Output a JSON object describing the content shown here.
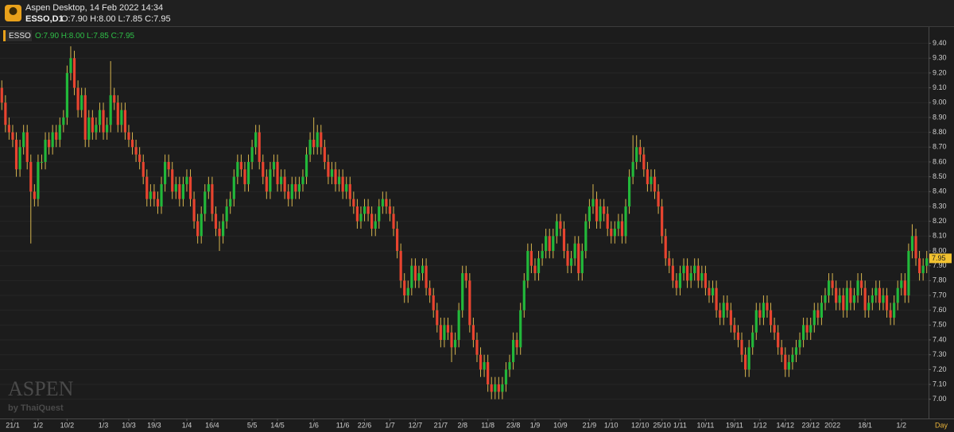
{
  "chart_data": {
    "type": "candlestick",
    "window_title": "Aspen Desktop, 14 Feb 2022 14:34",
    "symbol_period": "ESSO,D1",
    "symbol": "ESSO",
    "ohlc_label": "O:7.90 H:8.00 L:7.85 C:7.95",
    "brand": "ASPEN",
    "brand_by": "by ThaiQuest",
    "x_axis_unit": "Day",
    "last_price": 7.95,
    "up_color": "#22b83a",
    "down_color": "#e8442f",
    "wick_color": "#d6b54f",
    "grid": true,
    "ylim": [
      6.87,
      9.51
    ],
    "yticks": [
      {
        "value": 7,
        "label": "7.00"
      },
      {
        "value": 7.1,
        "label": "7.10"
      },
      {
        "value": 7.2,
        "label": "7.20"
      },
      {
        "value": 7.3,
        "label": "7.30"
      },
      {
        "value": 7.4,
        "label": "7.40"
      },
      {
        "value": 7.5,
        "label": "7.50"
      },
      {
        "value": 7.6,
        "label": "7.60"
      },
      {
        "value": 7.7,
        "label": "7.70"
      },
      {
        "value": 7.8,
        "label": "7.80"
      },
      {
        "value": 7.9,
        "label": "7.90"
      },
      {
        "value": 8,
        "label": "8.00"
      },
      {
        "value": 8.1,
        "label": "8.10"
      },
      {
        "value": 8.2,
        "label": "8.20"
      },
      {
        "value": 8.3,
        "label": "8.30"
      },
      {
        "value": 8.4,
        "label": "8.40"
      },
      {
        "value": 8.5,
        "label": "8.50"
      },
      {
        "value": 8.6,
        "label": "8.60"
      },
      {
        "value": 8.7,
        "label": "8.70"
      },
      {
        "value": 8.8,
        "label": "8.80"
      },
      {
        "value": 8.9,
        "label": "8.90"
      },
      {
        "value": 9,
        "label": "9.00"
      },
      {
        "value": 9.1,
        "label": "9.10"
      },
      {
        "value": 9.2,
        "label": "9.20"
      },
      {
        "value": 9.3,
        "label": "9.30"
      },
      {
        "value": 9.4,
        "label": "9.40"
      }
    ],
    "categories": [
      null,
      null,
      null,
      "21/1",
      null,
      null,
      null,
      null,
      null,
      null,
      "1/2",
      null,
      null,
      null,
      null,
      null,
      null,
      null,
      "10/2",
      null,
      null,
      null,
      null,
      null,
      null,
      null,
      null,
      null,
      "1/3",
      null,
      null,
      null,
      null,
      null,
      null,
      "10/3",
      null,
      null,
      null,
      null,
      null,
      null,
      "19/3",
      null,
      null,
      null,
      null,
      null,
      null,
      null,
      null,
      "1/4",
      null,
      null,
      null,
      null,
      null,
      null,
      "16/4",
      null,
      null,
      null,
      null,
      null,
      null,
      null,
      null,
      null,
      null,
      "5/5",
      null,
      null,
      null,
      null,
      null,
      null,
      "14/5",
      null,
      null,
      null,
      null,
      null,
      null,
      null,
      null,
      null,
      "1/6",
      null,
      null,
      null,
      null,
      null,
      null,
      null,
      "11/6",
      null,
      null,
      null,
      null,
      null,
      "22/6",
      null,
      null,
      null,
      null,
      null,
      null,
      "1/7",
      null,
      null,
      null,
      null,
      null,
      null,
      "12/7",
      null,
      null,
      null,
      null,
      null,
      null,
      "21/7",
      null,
      null,
      null,
      null,
      null,
      "2/8",
      null,
      null,
      null,
      null,
      null,
      null,
      "11/8",
      null,
      null,
      null,
      null,
      null,
      null,
      "23/8",
      null,
      null,
      null,
      null,
      null,
      "1/9",
      null,
      null,
      null,
      null,
      null,
      null,
      "10/9",
      null,
      null,
      null,
      null,
      null,
      null,
      null,
      "21/9",
      null,
      null,
      null,
      null,
      null,
      "1/10",
      null,
      null,
      null,
      null,
      null,
      null,
      null,
      "12/10",
      null,
      null,
      null,
      null,
      null,
      "25/10",
      null,
      null,
      null,
      null,
      "1/11",
      null,
      null,
      null,
      null,
      null,
      null,
      "10/11",
      null,
      null,
      null,
      null,
      null,
      null,
      null,
      "19/11",
      null,
      null,
      null,
      null,
      null,
      null,
      "1/12",
      null,
      null,
      null,
      null,
      null,
      null,
      "14/12",
      null,
      null,
      null,
      null,
      null,
      null,
      "23/12",
      null,
      null,
      null,
      null,
      null,
      "2022",
      null,
      null,
      null,
      null,
      null,
      null,
      null,
      null,
      "18/1",
      null,
      null,
      null,
      null,
      null,
      null,
      null,
      null,
      null,
      "1/2",
      null,
      null,
      null,
      null,
      null,
      null,
      null
    ],
    "open": [
      9.1,
      9.0,
      8.85,
      8.8,
      8.75,
      8.55,
      8.7,
      8.8,
      8.6,
      8.4,
      8.35,
      8.6,
      8.6,
      8.75,
      8.7,
      8.8,
      8.75,
      8.85,
      8.9,
      9.2,
      9.3,
      9.1,
      8.95,
      9.05,
      8.75,
      8.9,
      8.8,
      8.85,
      8.95,
      8.8,
      8.85,
      9.05,
      9.0,
      8.85,
      8.95,
      8.8,
      8.75,
      8.7,
      8.65,
      8.6,
      8.5,
      8.35,
      8.4,
      8.35,
      8.3,
      8.45,
      8.6,
      8.55,
      8.4,
      8.45,
      8.35,
      8.45,
      8.5,
      8.35,
      8.2,
      8.1,
      8.25,
      8.4,
      8.45,
      8.25,
      8.15,
      8.1,
      8.2,
      8.3,
      8.35,
      8.5,
      8.6,
      8.55,
      8.45,
      8.6,
      8.7,
      8.8,
      8.6,
      8.5,
      8.4,
      8.55,
      8.6,
      8.45,
      8.5,
      8.4,
      8.35,
      8.45,
      8.4,
      8.45,
      8.5,
      8.65,
      8.75,
      8.7,
      8.8,
      8.7,
      8.6,
      8.5,
      8.55,
      8.45,
      8.5,
      8.4,
      8.45,
      8.35,
      8.3,
      8.2,
      8.25,
      8.3,
      8.25,
      8.15,
      8.2,
      8.3,
      8.35,
      8.3,
      8.25,
      8.15,
      8.0,
      7.8,
      7.7,
      7.75,
      7.9,
      7.8,
      7.85,
      7.9,
      7.75,
      7.7,
      7.6,
      7.5,
      7.4,
      7.5,
      7.45,
      7.35,
      7.4,
      7.6,
      7.85,
      7.8,
      7.5,
      7.4,
      7.3,
      7.2,
      7.25,
      7.1,
      7.05,
      7.1,
      7.05,
      7.1,
      7.2,
      7.25,
      7.4,
      7.35,
      7.6,
      7.8,
      8.0,
      7.9,
      7.85,
      7.95,
      8.0,
      8.1,
      8.0,
      8.1,
      8.2,
      8.15,
      8.0,
      7.9,
      7.95,
      8.05,
      7.85,
      8.0,
      8.2,
      8.3,
      8.35,
      8.2,
      8.3,
      8.25,
      8.15,
      8.1,
      8.15,
      8.2,
      8.1,
      8.3,
      8.5,
      8.6,
      8.7,
      8.65,
      8.55,
      8.45,
      8.5,
      8.4,
      8.3,
      8.1,
      7.95,
      7.9,
      7.8,
      7.75,
      7.85,
      7.9,
      7.8,
      7.85,
      7.9,
      7.8,
      7.85,
      7.75,
      7.7,
      7.75,
      7.6,
      7.55,
      7.65,
      7.6,
      7.5,
      7.45,
      7.4,
      7.3,
      7.2,
      7.35,
      7.45,
      7.6,
      7.55,
      7.65,
      7.6,
      7.5,
      7.45,
      7.35,
      7.3,
      7.2,
      7.25,
      7.3,
      7.35,
      7.4,
      7.5,
      7.45,
      7.5,
      7.6,
      7.55,
      7.65,
      7.7,
      7.8,
      7.75,
      7.65,
      7.7,
      7.6,
      7.75,
      7.65,
      7.7,
      7.8,
      7.75,
      7.6,
      7.65,
      7.7,
      7.75,
      7.65,
      7.7,
      7.6,
      7.55,
      7.65,
      7.75,
      7.8,
      7.7,
      8.0,
      8.1,
      7.95,
      7.85,
      7.9
    ],
    "high": [
      9.15,
      9.05,
      8.9,
      8.85,
      8.8,
      8.75,
      8.85,
      8.85,
      8.65,
      8.45,
      8.65,
      8.65,
      8.8,
      8.8,
      8.85,
      8.85,
      8.9,
      8.95,
      9.25,
      9.38,
      9.35,
      9.15,
      9.1,
      9.1,
      8.95,
      8.95,
      8.9,
      9.0,
      9.0,
      8.9,
      9.28,
      9.1,
      9.05,
      9.0,
      9.0,
      8.85,
      8.8,
      8.75,
      8.7,
      8.65,
      8.55,
      8.45,
      8.45,
      8.4,
      8.5,
      8.65,
      8.65,
      8.6,
      8.5,
      8.5,
      8.5,
      8.55,
      8.55,
      8.4,
      8.25,
      8.3,
      8.45,
      8.5,
      8.5,
      8.3,
      8.2,
      8.25,
      8.35,
      8.4,
      8.55,
      8.65,
      8.65,
      8.6,
      8.65,
      8.75,
      8.85,
      8.85,
      8.65,
      8.55,
      8.6,
      8.65,
      8.65,
      8.55,
      8.55,
      8.45,
      8.5,
      8.5,
      8.5,
      8.55,
      8.7,
      8.8,
      8.9,
      8.85,
      8.85,
      8.75,
      8.65,
      8.6,
      8.6,
      8.55,
      8.55,
      8.5,
      8.5,
      8.4,
      8.35,
      8.3,
      8.35,
      8.35,
      8.3,
      8.25,
      8.35,
      8.4,
      8.4,
      8.35,
      8.3,
      8.2,
      8.05,
      7.85,
      7.8,
      7.95,
      7.95,
      7.9,
      7.95,
      7.95,
      7.8,
      7.75,
      7.65,
      7.55,
      7.55,
      7.55,
      7.5,
      7.45,
      7.65,
      7.9,
      7.9,
      7.85,
      7.55,
      7.45,
      7.35,
      7.3,
      7.3,
      7.15,
      7.15,
      7.15,
      7.15,
      7.25,
      7.3,
      7.45,
      7.45,
      7.65,
      7.85,
      8.05,
      8.05,
      7.95,
      8.0,
      8.05,
      8.15,
      8.15,
      8.15,
      8.25,
      8.25,
      8.2,
      8.05,
      8.0,
      8.1,
      8.1,
      8.05,
      8.25,
      8.35,
      8.45,
      8.4,
      8.35,
      8.35,
      8.3,
      8.2,
      8.2,
      8.25,
      8.25,
      8.35,
      8.55,
      8.78,
      8.78,
      8.75,
      8.7,
      8.6,
      8.55,
      8.55,
      8.45,
      8.35,
      8.15,
      8.0,
      7.95,
      7.85,
      7.9,
      7.95,
      7.95,
      7.9,
      7.95,
      7.95,
      7.9,
      7.9,
      7.8,
      7.8,
      7.8,
      7.65,
      7.7,
      7.7,
      7.65,
      7.55,
      7.5,
      7.45,
      7.35,
      7.4,
      7.5,
      7.65,
      7.65,
      7.7,
      7.7,
      7.65,
      7.55,
      7.5,
      7.4,
      7.35,
      7.3,
      7.35,
      7.4,
      7.45,
      7.55,
      7.55,
      7.55,
      7.65,
      7.65,
      7.7,
      7.75,
      7.85,
      7.85,
      7.8,
      7.75,
      7.75,
      7.8,
      7.8,
      7.75,
      7.85,
      7.85,
      7.8,
      7.7,
      7.75,
      7.8,
      7.8,
      7.75,
      7.75,
      7.65,
      7.7,
      7.8,
      7.85,
      7.85,
      8.05,
      8.18,
      8.15,
      8.0,
      7.95,
      8.0
    ],
    "low": [
      8.95,
      8.8,
      8.75,
      8.7,
      8.5,
      8.5,
      8.65,
      8.55,
      8.05,
      8.3,
      8.3,
      8.55,
      8.55,
      8.65,
      8.65,
      8.7,
      8.7,
      8.8,
      8.85,
      9.15,
      9.05,
      8.9,
      8.9,
      8.7,
      8.7,
      8.75,
      8.75,
      8.8,
      8.75,
      8.75,
      8.8,
      8.95,
      8.8,
      8.8,
      8.75,
      8.7,
      8.65,
      8.6,
      8.55,
      8.45,
      8.3,
      8.3,
      8.3,
      8.25,
      8.25,
      8.4,
      8.5,
      8.35,
      8.35,
      8.3,
      8.3,
      8.4,
      8.3,
      8.15,
      8.05,
      8.05,
      8.2,
      8.35,
      8.2,
      8.1,
      8.0,
      8.05,
      8.15,
      8.25,
      8.3,
      8.45,
      8.5,
      8.4,
      8.4,
      8.55,
      8.65,
      8.55,
      8.45,
      8.35,
      8.35,
      8.5,
      8.4,
      8.4,
      8.35,
      8.3,
      8.3,
      8.35,
      8.35,
      8.4,
      8.45,
      8.6,
      8.65,
      8.65,
      8.65,
      8.55,
      8.45,
      8.45,
      8.4,
      8.4,
      8.35,
      8.35,
      8.3,
      8.25,
      8.15,
      8.15,
      8.2,
      8.2,
      8.1,
      8.1,
      8.15,
      8.25,
      8.25,
      8.2,
      8.1,
      7.95,
      7.75,
      7.65,
      7.65,
      7.7,
      7.75,
      7.75,
      7.8,
      7.7,
      7.65,
      7.55,
      7.45,
      7.35,
      7.35,
      7.4,
      7.25,
      7.3,
      7.35,
      7.55,
      7.75,
      7.45,
      7.35,
      7.25,
      7.15,
      7.15,
      7.05,
      7.0,
      7.0,
      7.0,
      7.0,
      7.05,
      7.15,
      7.2,
      7.3,
      7.3,
      7.55,
      7.75,
      7.85,
      7.8,
      7.8,
      7.9,
      7.95,
      7.95,
      7.95,
      8.05,
      8.1,
      7.95,
      7.85,
      7.85,
      7.9,
      7.8,
      7.8,
      7.95,
      8.15,
      8.25,
      8.15,
      8.15,
      8.2,
      8.1,
      8.05,
      8.05,
      8.1,
      8.05,
      8.05,
      8.25,
      8.45,
      8.55,
      8.6,
      8.5,
      8.4,
      8.4,
      8.35,
      8.25,
      8.05,
      7.9,
      7.85,
      7.75,
      7.7,
      7.7,
      7.8,
      7.75,
      7.75,
      7.8,
      7.75,
      7.75,
      7.7,
      7.65,
      7.65,
      7.55,
      7.5,
      7.5,
      7.55,
      7.45,
      7.4,
      7.35,
      7.25,
      7.15,
      7.15,
      7.3,
      7.4,
      7.5,
      7.5,
      7.55,
      7.45,
      7.4,
      7.3,
      7.25,
      7.15,
      7.15,
      7.2,
      7.25,
      7.3,
      7.35,
      7.4,
      7.4,
      7.45,
      7.5,
      7.5,
      7.6,
      7.65,
      7.7,
      7.6,
      7.6,
      7.55,
      7.55,
      7.6,
      7.6,
      7.65,
      7.7,
      7.55,
      7.55,
      7.6,
      7.65,
      7.6,
      7.6,
      7.55,
      7.5,
      7.5,
      7.6,
      7.7,
      7.65,
      7.65,
      7.95,
      7.9,
      7.8,
      7.8,
      7.85
    ],
    "close": [
      9.0,
      8.85,
      8.8,
      8.75,
      8.55,
      8.7,
      8.8,
      8.6,
      8.4,
      8.35,
      8.6,
      8.6,
      8.75,
      8.7,
      8.8,
      8.75,
      8.85,
      8.9,
      9.2,
      9.3,
      9.1,
      8.95,
      9.05,
      8.75,
      8.9,
      8.8,
      8.85,
      8.95,
      8.8,
      8.85,
      9.05,
      9.0,
      8.85,
      8.95,
      8.8,
      8.75,
      8.7,
      8.65,
      8.6,
      8.5,
      8.35,
      8.4,
      8.35,
      8.3,
      8.45,
      8.6,
      8.55,
      8.4,
      8.45,
      8.35,
      8.45,
      8.5,
      8.35,
      8.2,
      8.1,
      8.25,
      8.4,
      8.45,
      8.25,
      8.15,
      8.1,
      8.2,
      8.3,
      8.35,
      8.5,
      8.6,
      8.55,
      8.45,
      8.6,
      8.7,
      8.8,
      8.6,
      8.5,
      8.4,
      8.55,
      8.6,
      8.45,
      8.5,
      8.4,
      8.35,
      8.45,
      8.4,
      8.45,
      8.5,
      8.65,
      8.75,
      8.7,
      8.8,
      8.7,
      8.6,
      8.5,
      8.55,
      8.45,
      8.5,
      8.4,
      8.45,
      8.35,
      8.3,
      8.2,
      8.25,
      8.3,
      8.25,
      8.15,
      8.2,
      8.3,
      8.35,
      8.3,
      8.25,
      8.15,
      8.0,
      7.8,
      7.7,
      7.75,
      7.9,
      7.8,
      7.85,
      7.9,
      7.75,
      7.7,
      7.6,
      7.5,
      7.4,
      7.5,
      7.45,
      7.35,
      7.4,
      7.6,
      7.85,
      7.8,
      7.5,
      7.4,
      7.3,
      7.2,
      7.25,
      7.1,
      7.05,
      7.1,
      7.05,
      7.1,
      7.2,
      7.25,
      7.4,
      7.35,
      7.6,
      7.8,
      8.0,
      7.9,
      7.85,
      7.95,
      8.0,
      8.1,
      8.0,
      8.1,
      8.2,
      8.15,
      8.0,
      7.9,
      7.95,
      8.05,
      7.85,
      8.0,
      8.2,
      8.3,
      8.35,
      8.2,
      8.3,
      8.25,
      8.15,
      8.1,
      8.15,
      8.2,
      8.1,
      8.3,
      8.5,
      8.6,
      8.7,
      8.65,
      8.55,
      8.45,
      8.5,
      8.4,
      8.3,
      8.1,
      7.95,
      7.9,
      7.8,
      7.75,
      7.85,
      7.9,
      7.8,
      7.85,
      7.9,
      7.8,
      7.85,
      7.75,
      7.7,
      7.75,
      7.6,
      7.55,
      7.65,
      7.6,
      7.5,
      7.45,
      7.4,
      7.3,
      7.2,
      7.35,
      7.45,
      7.6,
      7.55,
      7.65,
      7.6,
      7.5,
      7.45,
      7.35,
      7.3,
      7.2,
      7.25,
      7.3,
      7.35,
      7.4,
      7.5,
      7.45,
      7.5,
      7.6,
      7.55,
      7.65,
      7.7,
      7.8,
      7.75,
      7.65,
      7.7,
      7.6,
      7.75,
      7.65,
      7.7,
      7.8,
      7.75,
      7.6,
      7.65,
      7.7,
      7.75,
      7.65,
      7.7,
      7.6,
      7.55,
      7.65,
      7.75,
      7.8,
      7.7,
      8.0,
      8.1,
      7.95,
      7.85,
      7.9,
      7.95
    ]
  }
}
